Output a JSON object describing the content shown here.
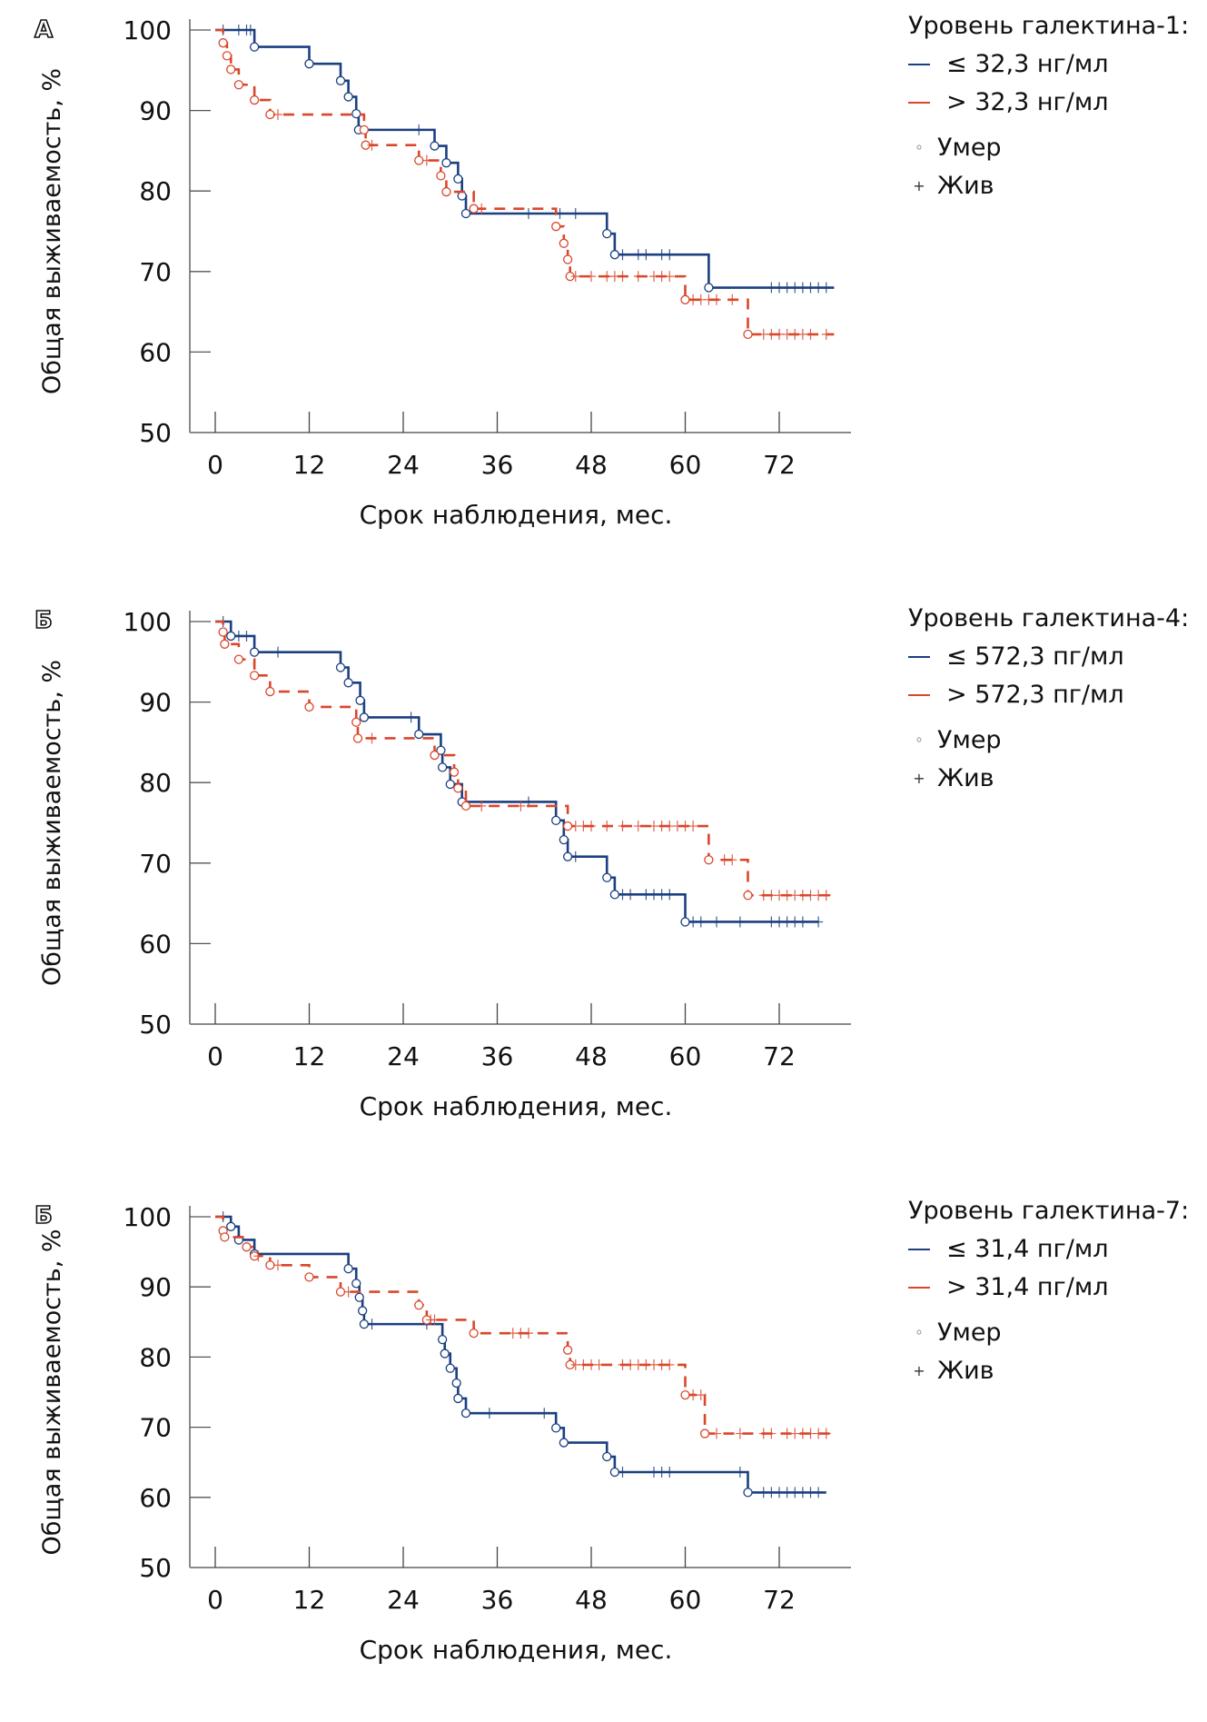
{
  "figure": {
    "ylabel": "Общая выживаемость, %",
    "xlabel": "Срок наблюдения, мес.",
    "colors": {
      "low": "#1b3f80",
      "high": "#d9472b",
      "axis": "#8a8a8a"
    },
    "legend_markers": {
      "died": "Умер",
      "alive": "Жив",
      "died_icon": "◦",
      "alive_icon": "+"
    }
  },
  "chart_data": [
    {
      "panel_label": "А",
      "type": "line",
      "subtype": "kaplan-meier",
      "title": "Уровень галектина-1:",
      "xlabel": "Срок наблюдения, мес.",
      "ylabel": "Общая выживаемость, %",
      "xticks": [
        0,
        12,
        24,
        36,
        48,
        60,
        72
      ],
      "yticks": [
        50,
        60,
        70,
        80,
        90,
        100
      ],
      "xlim": [
        -4,
        81
      ],
      "ylim": [
        50,
        100
      ],
      "legend": [
        "≤ 32,3 нг/мл",
        "> 32,3 нг/мл"
      ],
      "legend_position": "top-right",
      "series": [
        {
          "name": "≤ 32,3 нг/мл",
          "color_key": "low",
          "style": "solid",
          "steps": [
            [
              0,
              100
            ],
            [
              5,
              97.9
            ],
            [
              12,
              95.8
            ],
            [
              16,
              93.7
            ],
            [
              17,
              91.7
            ],
            [
              18,
              89.6
            ],
            [
              18.3,
              87.6
            ],
            [
              28,
              85.6
            ],
            [
              29.5,
              83.5
            ],
            [
              31,
              81.5
            ],
            [
              31.5,
              79.4
            ],
            [
              32,
              77.2
            ],
            [
              50,
              74.7
            ],
            [
              51,
              72.1
            ],
            [
              63,
              68.0
            ]
          ],
          "died": [
            5,
            12,
            16,
            17,
            18,
            18.3,
            28,
            29.5,
            31,
            31.5,
            32,
            50,
            51,
            63
          ],
          "censored": [
            1,
            3,
            4,
            4.5,
            26,
            40,
            44,
            46,
            52,
            54,
            55,
            57,
            58,
            71,
            72,
            73,
            74,
            75,
            76,
            77,
            78
          ],
          "end": 79
        },
        {
          "name": "> 32,3 нг/мл",
          "color_key": "high",
          "style": "dashed",
          "steps": [
            [
              0,
              100
            ],
            [
              1,
              98.4
            ],
            [
              1.5,
              96.8
            ],
            [
              2,
              95.1
            ],
            [
              3,
              93.2
            ],
            [
              5,
              91.3
            ],
            [
              7,
              89.5
            ],
            [
              19,
              87.6
            ],
            [
              19.2,
              85.7
            ],
            [
              26,
              83.8
            ],
            [
              28.8,
              81.9
            ],
            [
              29.5,
              79.9
            ],
            [
              33,
              77.8
            ],
            [
              43.5,
              75.6
            ],
            [
              44.5,
              73.5
            ],
            [
              45,
              71.5
            ],
            [
              45.3,
              69.4
            ],
            [
              60,
              66.5
            ],
            [
              68,
              62.2
            ]
          ],
          "died": [
            1,
            1.5,
            2,
            3,
            5,
            7,
            19,
            19.2,
            26,
            28.8,
            29.5,
            33,
            43.5,
            44.5,
            45,
            45.3,
            60,
            68
          ],
          "censored": [
            8,
            20,
            27,
            34,
            46,
            48,
            50,
            51,
            52,
            54,
            56,
            57,
            58,
            61,
            62,
            63,
            64,
            66,
            70,
            71,
            72,
            73,
            74,
            75,
            76,
            78
          ],
          "end": 79
        }
      ]
    },
    {
      "panel_label": "Б",
      "type": "line",
      "subtype": "kaplan-meier",
      "title": "Уровень галектина-4:",
      "xlabel": "Срок наблюдения, мес.",
      "ylabel": "Общая выживаемость, %",
      "xticks": [
        0,
        12,
        24,
        36,
        48,
        60,
        72
      ],
      "yticks": [
        50,
        60,
        70,
        80,
        90,
        100
      ],
      "xlim": [
        -4,
        81
      ],
      "ylim": [
        50,
        100
      ],
      "legend": [
        "≤ 572,3 пг/мл",
        "> 572,3 пг/мл"
      ],
      "legend_position": "top-right",
      "series": [
        {
          "name": "≤ 572,3 пг/мл",
          "color_key": "low",
          "style": "solid",
          "steps": [
            [
              0,
              100
            ],
            [
              2,
              98.2
            ],
            [
              5,
              96.2
            ],
            [
              16,
              94.3
            ],
            [
              17,
              92.4
            ],
            [
              18.5,
              90.2
            ],
            [
              19,
              88.1
            ],
            [
              26,
              86.0
            ],
            [
              28.8,
              84.0
            ],
            [
              29,
              81.9
            ],
            [
              30,
              79.8
            ],
            [
              31.5,
              77.6
            ],
            [
              43.5,
              75.3
            ],
            [
              44.5,
              72.9
            ],
            [
              45,
              70.8
            ],
            [
              50,
              68.2
            ],
            [
              51,
              66.1
            ],
            [
              60,
              62.7
            ]
          ],
          "died": [
            2,
            5,
            16,
            17,
            18.5,
            19,
            26,
            28.8,
            29,
            30,
            31.5,
            43.5,
            44.5,
            45,
            50,
            51,
            60
          ],
          "censored": [
            1,
            3,
            4,
            8,
            25,
            40,
            46,
            52,
            53,
            55,
            56,
            57,
            58,
            61,
            62,
            64,
            67,
            71,
            72,
            73,
            74,
            75,
            77
          ],
          "end": 77
        },
        {
          "name": "> 572,3 пг/мл",
          "color_key": "high",
          "style": "dashed",
          "steps": [
            [
              0,
              100
            ],
            [
              1,
              98.7
            ],
            [
              1.2,
              97.2
            ],
            [
              3,
              95.3
            ],
            [
              5,
              93.3
            ],
            [
              7,
              91.3
            ],
            [
              12,
              89.4
            ],
            [
              18,
              87.5
            ],
            [
              18.2,
              85.5
            ],
            [
              28,
              83.4
            ],
            [
              30.5,
              81.3
            ],
            [
              31,
              79.3
            ],
            [
              32,
              77.1
            ],
            [
              45,
              74.6
            ],
            [
              63,
              70.4
            ],
            [
              68,
              66.0
            ]
          ],
          "died": [
            1,
            1.2,
            3,
            5,
            7,
            12,
            18,
            18.2,
            28,
            30.5,
            31,
            32,
            45,
            63,
            68
          ],
          "censored": [
            20,
            34,
            39,
            46,
            47,
            48,
            50,
            52,
            54,
            56,
            57,
            58,
            59,
            60,
            61,
            65,
            66,
            70,
            71,
            72,
            73,
            74,
            75,
            76,
            77,
            78
          ],
          "end": 79
        }
      ]
    },
    {
      "panel_label": "Б",
      "type": "line",
      "subtype": "kaplan-meier",
      "title": "Уровень галектина-7:",
      "xlabel": "Срок наблюдения, мес.",
      "ylabel": "Общая выживаемость, %",
      "xticks": [
        0,
        12,
        24,
        36,
        48,
        60,
        72
      ],
      "yticks": [
        50,
        60,
        70,
        80,
        90,
        100
      ],
      "xlim": [
        -4,
        81
      ],
      "ylim": [
        50,
        100
      ],
      "legend": [
        "≤ 31,4 пг/мл",
        "> 31,4 пг/мл"
      ],
      "legend_position": "top-right",
      "series": [
        {
          "name": "≤ 31,4 пг/мл",
          "color_key": "low",
          "style": "solid",
          "steps": [
            [
              0,
              100
            ],
            [
              2,
              98.6
            ],
            [
              3,
              96.7
            ],
            [
              5,
              94.7
            ],
            [
              17,
              92.6
            ],
            [
              18,
              90.5
            ],
            [
              18.4,
              88.5
            ],
            [
              18.8,
              86.6
            ],
            [
              19,
              84.7
            ],
            [
              29,
              82.5
            ],
            [
              29.3,
              80.5
            ],
            [
              30,
              78.4
            ],
            [
              30.8,
              76.3
            ],
            [
              31,
              74.1
            ],
            [
              32,
              72.0
            ],
            [
              43.5,
              69.9
            ],
            [
              44.5,
              67.8
            ],
            [
              50,
              65.8
            ],
            [
              51,
              63.6
            ],
            [
              68,
              60.7
            ]
          ],
          "died": [
            2,
            3,
            5,
            17,
            18,
            18.4,
            18.8,
            19,
            29,
            29.3,
            30,
            30.8,
            31,
            32,
            43.5,
            44.5,
            50,
            51,
            68
          ],
          "censored": [
            1,
            20,
            27,
            35,
            42,
            52,
            56,
            57,
            58,
            67,
            70,
            71,
            72,
            73,
            74,
            75,
            76,
            77
          ],
          "end": 78
        },
        {
          "name": "> 31,4 пг/мл",
          "color_key": "high",
          "style": "dashed",
          "steps": [
            [
              0,
              100
            ],
            [
              1,
              98.0
            ],
            [
              1.2,
              97.1
            ],
            [
              4,
              95.7
            ],
            [
              5,
              94.4
            ],
            [
              7,
              93.1
            ],
            [
              12,
              91.4
            ],
            [
              16,
              89.3
            ],
            [
              26,
              87.4
            ],
            [
              27,
              85.3
            ],
            [
              33,
              83.4
            ],
            [
              45,
              81.0
            ],
            [
              45.3,
              78.9
            ],
            [
              60,
              74.6
            ],
            [
              62.5,
              69.1
            ]
          ],
          "died": [
            1,
            1.2,
            4,
            5,
            7,
            12,
            16,
            26,
            27,
            33,
            45,
            45.3,
            60,
            62.5
          ],
          "censored": [
            5.5,
            8,
            17,
            27.5,
            28,
            38,
            39,
            40,
            46,
            47,
            48,
            49,
            52,
            53,
            54,
            55,
            56,
            57,
            58,
            61,
            62,
            64,
            67,
            70,
            71,
            73,
            74,
            75,
            76,
            77,
            78
          ],
          "end": 79
        }
      ]
    }
  ]
}
